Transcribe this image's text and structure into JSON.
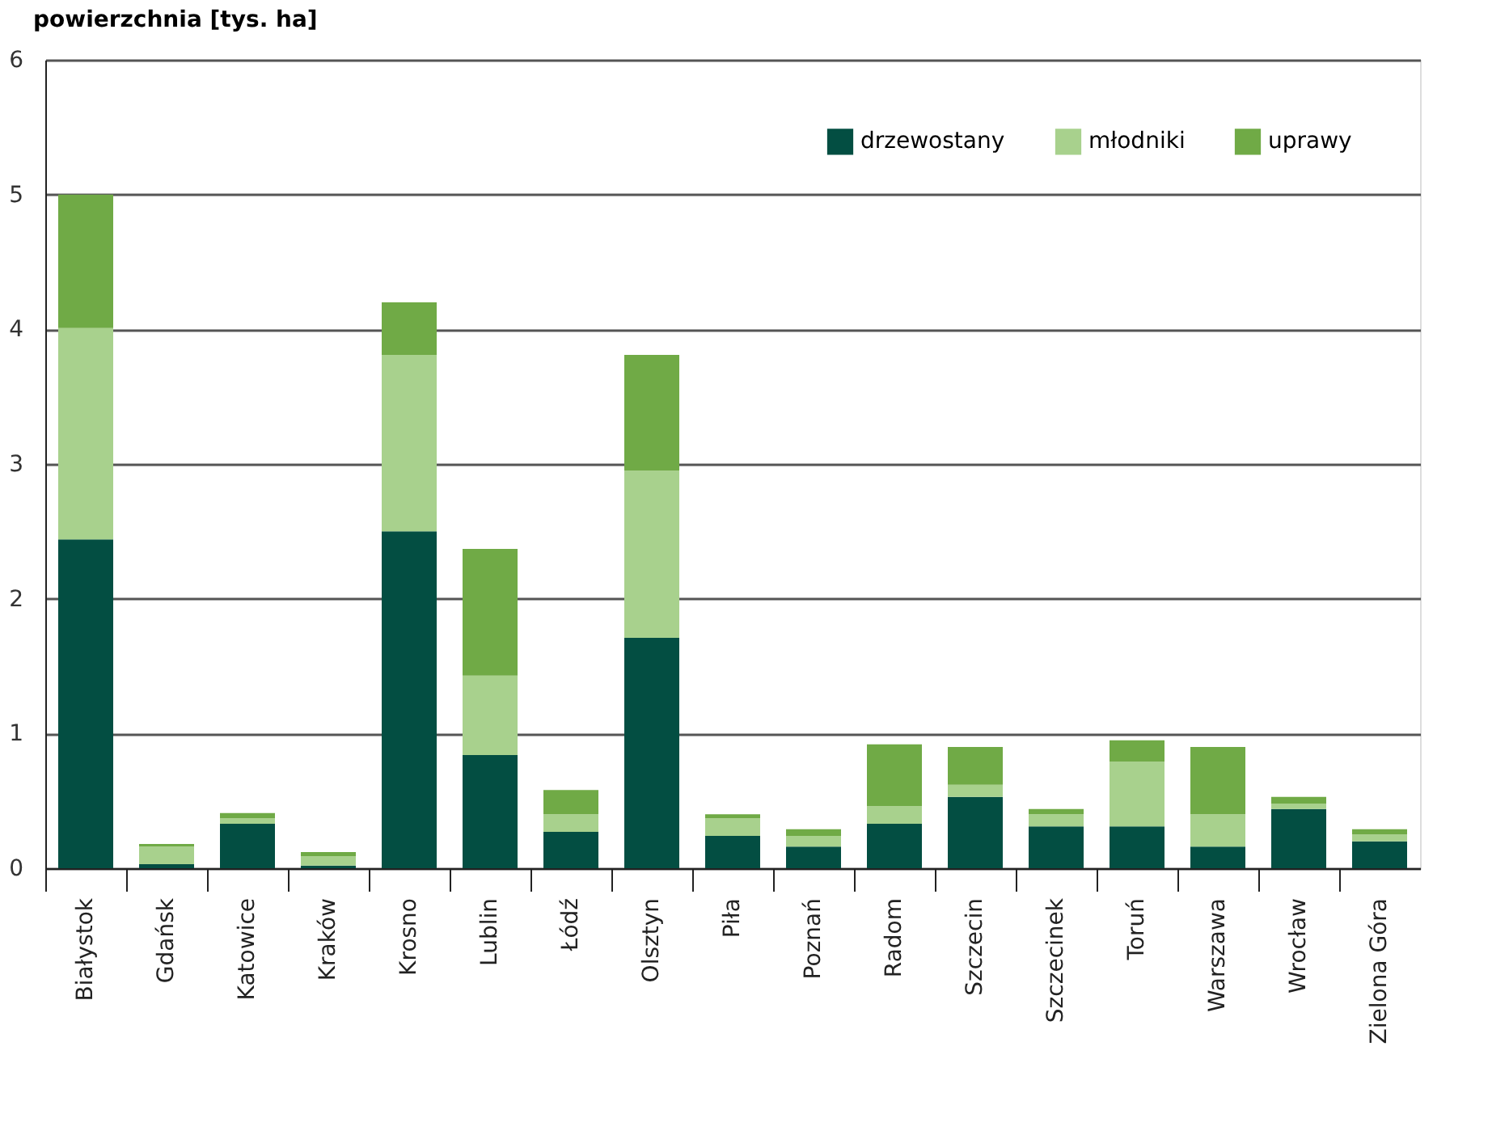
{
  "chart_data": {
    "type": "bar",
    "stacked": true,
    "ylabel": "powierzchnia [tys. ha]",
    "categories": [
      "Białystok",
      "Gdańsk",
      "Katowice",
      "Kraków",
      "Krosno",
      "Lublin",
      "Łódź",
      "Olsztyn",
      "Piła",
      "Poznań",
      "Radom",
      "Szczecin",
      "Szczecinek",
      "Toruń",
      "Warszawa",
      "Wrocław",
      "Zielona Góra"
    ],
    "series": [
      {
        "name": "drzewostany",
        "color": "#034e42",
        "values": [
          2.44,
          0.03,
          0.33,
          0.02,
          2.5,
          0.84,
          0.27,
          1.71,
          0.24,
          0.16,
          0.33,
          0.53,
          0.31,
          0.31,
          0.16,
          0.44,
          0.2
        ]
      },
      {
        "name": "młodniki",
        "color": "#a8d18d",
        "values": [
          1.57,
          0.13,
          0.04,
          0.07,
          1.31,
          0.59,
          0.13,
          1.24,
          0.13,
          0.08,
          0.13,
          0.09,
          0.09,
          0.48,
          0.24,
          0.04,
          0.05
        ]
      },
      {
        "name": "uprawy",
        "color": "#70aa46",
        "values": [
          0.99,
          0.02,
          0.04,
          0.03,
          0.39,
          0.94,
          0.18,
          0.86,
          0.03,
          0.05,
          0.46,
          0.28,
          0.04,
          0.16,
          0.5,
          0.05,
          0.04
        ]
      }
    ],
    "ylim": [
      0,
      6
    ],
    "yticks": [
      0,
      1,
      2,
      3,
      4,
      5,
      6
    ],
    "grid": "y",
    "legend": "top right"
  }
}
